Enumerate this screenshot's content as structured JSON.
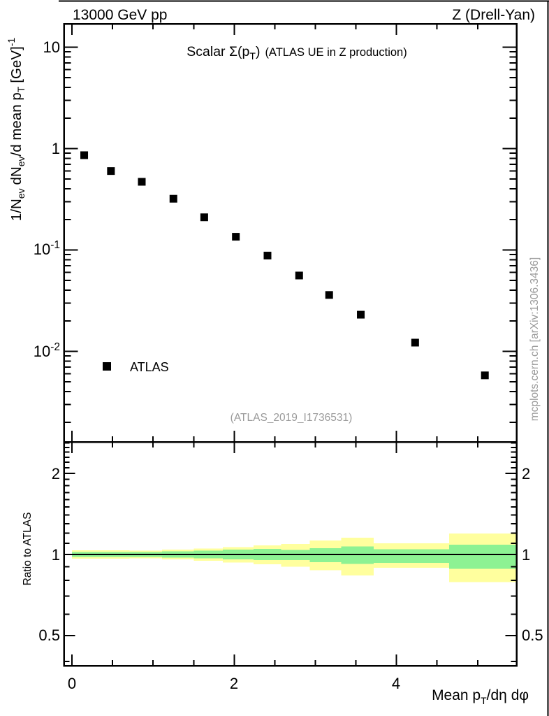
{
  "header": {
    "left": "13000 GeV pp",
    "right": "Z (Drell-Yan)"
  },
  "side_text": "mcplots.cern.ch [arXiv:1306.3436]",
  "main_panel": {
    "title": {
      "full": "Scalar Σ(p_T) (ATLAS UE in Z production)",
      "lead": "Scalar Σ(p",
      "sub": "T",
      "close": ")",
      "paren": "(ATLAS UE in Z production)"
    },
    "ylabel": {
      "full": "1/N_ev dN_ev/d mean p_T [GeV]^-1",
      "p1": "1/N",
      "s1": "ev",
      "p2": "dN",
      "s2": "ev",
      "p3": "/d mean p",
      "s3": "T",
      "p4": "[GeV]",
      "sup": "-1"
    },
    "y_ticks": [
      {
        "base": "10",
        "exp": ""
      },
      {
        "base": "1",
        "exp": ""
      },
      {
        "base": "10",
        "exp": "-1"
      },
      {
        "base": "10",
        "exp": "-2"
      }
    ],
    "legend": {
      "label": "ATLAS"
    },
    "watermark": "(ATLAS_2019_I1736531)"
  },
  "ratio_panel": {
    "ylabel": "Ratio to ATLAS",
    "y_tick_labels": [
      "2",
      "1",
      "0.5"
    ],
    "x_tick_labels": [
      "0",
      "2",
      "4"
    ],
    "xlabel": {
      "full": "Mean p_T/dη dφ",
      "p1": "Mean p",
      "s1": "T",
      "p2": "/dη dφ"
    }
  },
  "chart_data": [
    {
      "type": "scatter",
      "title": "Scalar Σ(p_T) (ATLAS UE in Z production)",
      "xlabel": "Mean p_T/dη dφ",
      "ylabel": "1/N_ev dN_ev/d mean p_T [GeV]^-1",
      "x_range": [
        -0.1,
        5.48
      ],
      "y_range_log": [
        0.00128,
        17
      ],
      "y_scale": "log",
      "grid": false,
      "x_major_ticks": [
        0,
        2,
        4
      ],
      "x_minor_tick_step": 0.5,
      "y_labeled_ticks": [
        10,
        1,
        0.1,
        0.01
      ],
      "legend_position": "bottom-left",
      "series": [
        {
          "name": "ATLAS",
          "marker": "filled-square",
          "color": "#000000",
          "x": [
            0.15,
            0.48,
            0.86,
            1.25,
            1.63,
            2.02,
            2.41,
            2.8,
            3.17,
            3.56,
            4.23,
            5.09
          ],
          "y": [
            0.86,
            0.6,
            0.47,
            0.32,
            0.21,
            0.135,
            0.088,
            0.056,
            0.036,
            0.023,
            0.0122,
            0.0058
          ]
        }
      ]
    },
    {
      "type": "ratio-bands",
      "ylabel": "Ratio to ATLAS",
      "y_scale": "log",
      "y_range_log": [
        0.386,
        2.62
      ],
      "y_major_ticks": [
        0.5,
        1,
        2
      ],
      "reference_line": 1.0,
      "bin_edges": [
        0,
        0.33,
        0.71,
        1.11,
        1.5,
        1.86,
        2.24,
        2.58,
        2.93,
        3.32,
        3.72,
        4.65,
        5.48
      ],
      "bands": [
        {
          "name": "outer-uncertainty",
          "color": "#ffff9e",
          "hi": [
            1.035,
            1.035,
            1.032,
            1.042,
            1.052,
            1.066,
            1.082,
            1.094,
            1.127,
            1.154,
            1.1,
            1.196
          ],
          "lo": [
            0.965,
            0.965,
            0.968,
            0.958,
            0.948,
            0.934,
            0.918,
            0.901,
            0.873,
            0.835,
            0.891,
            0.79
          ]
        },
        {
          "name": "inner-uncertainty",
          "color": "#8df293",
          "hi": [
            1.022,
            1.022,
            1.022,
            1.026,
            1.032,
            1.042,
            1.048,
            1.04,
            1.055,
            1.072,
            1.044,
            1.087
          ],
          "lo": [
            0.978,
            0.978,
            0.98,
            0.974,
            0.968,
            0.958,
            0.952,
            0.952,
            0.936,
            0.923,
            0.929,
            0.884
          ]
        }
      ]
    }
  ]
}
